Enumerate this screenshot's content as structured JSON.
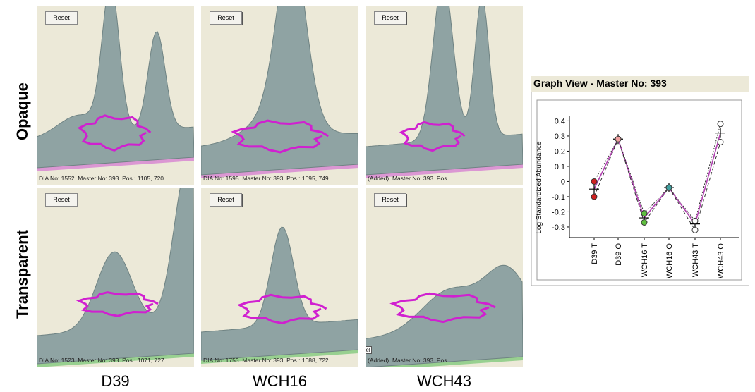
{
  "row_labels": [
    "Opaque",
    "Transparent"
  ],
  "column_labels": [
    "D39",
    "WCH16",
    "WCH43"
  ],
  "panels": [
    {
      "button": "Reset",
      "caption": "DIA No: 1552  Master No: 393  Pos.: 1105, 720"
    },
    {
      "button": "Reset",
      "caption": "DIA No: 1595  Master No: 393  Pos.: 1095, 749"
    },
    {
      "button": "Reset",
      "caption": "(Added)  Master No: 393  Pos"
    },
    {
      "button": "Reset",
      "caption": "DIA No: 1523  Master No: 393  Pos.: 1071, 727"
    },
    {
      "button": "Reset",
      "caption": "DIA No: 1753  Master No: 393  Pos.: 1088, 722"
    },
    {
      "button": "Reset",
      "caption": "(Added)  Master No: 393  Pos",
      "tag": "gel"
    }
  ],
  "graph_view": {
    "title": "Graph View - Master No: 393",
    "y_label": "Log Standardized Abundance",
    "categories": [
      "D39 T",
      "D39 O",
      "WCH16 T",
      "WCH16 O",
      "WCH43 T",
      "WCH43 O"
    ],
    "ylim": [
      -0.37,
      0.43
    ],
    "yticks": [
      0.4,
      0.3,
      0.2,
      0.1,
      0,
      -0.1,
      -0.2,
      -0.3
    ],
    "series": [
      {
        "color": "#b040b0",
        "style": "solid",
        "values": [
          -0.05,
          0.28,
          -0.24,
          -0.04,
          -0.28,
          0.32
        ]
      },
      {
        "color": "#333333",
        "style": "dotted",
        "values": [
          0.0,
          0.28,
          -0.21,
          -0.04,
          -0.26,
          0.38
        ]
      },
      {
        "color": "#333333",
        "style": "dashed",
        "values": [
          -0.1,
          0.28,
          -0.27,
          -0.04,
          -0.32,
          0.26
        ]
      }
    ],
    "point_colors": [
      "#d02020",
      "#f0a0a0",
      "#60c040",
      "#40a0a0",
      "#ffffff",
      "#ffffff"
    ]
  }
}
